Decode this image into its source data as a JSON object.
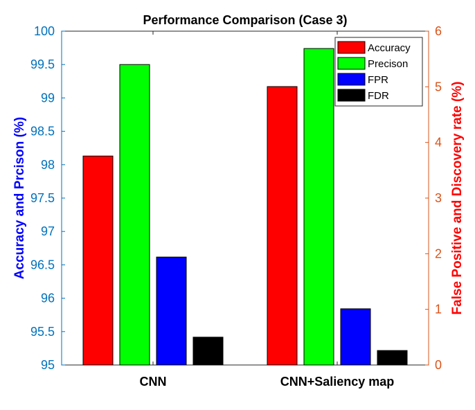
{
  "chart_data": {
    "type": "bar",
    "title": "Performance Comparison  (Case 3)",
    "categories": [
      "CNN",
      "CNN+Saliency map"
    ],
    "y_left": {
      "label": "Accuracy and Prcison (%)",
      "lim": [
        95,
        100
      ],
      "ticks": [
        "95",
        "95.5",
        "96",
        "96.5",
        "97",
        "97.5",
        "98",
        "98.5",
        "99",
        "99.5",
        "100"
      ],
      "color": "#0072BD",
      "label_color": "#0000FF"
    },
    "y_right": {
      "label": "False Positive and Discovery rate (%)",
      "lim": [
        0,
        6
      ],
      "ticks": [
        "0",
        "1",
        "2",
        "3",
        "4",
        "5",
        "6"
      ],
      "color": "#D95319",
      "label_color": "#FF0000"
    },
    "series": [
      {
        "name": "Accuracy",
        "axis": "left",
        "color": "#FF0000",
        "values": [
          98.13,
          99.17
        ]
      },
      {
        "name": "Precison",
        "axis": "left",
        "color": "#00FF00",
        "values": [
          99.5,
          99.74
        ]
      },
      {
        "name": "FPR",
        "axis": "right",
        "color": "#0000FF",
        "values": [
          1.94,
          1.01
        ]
      },
      {
        "name": "FDR",
        "axis": "right",
        "color": "#000000",
        "values": [
          0.5,
          0.26
        ]
      }
    ],
    "legend_position": "top-right",
    "grid": false
  }
}
